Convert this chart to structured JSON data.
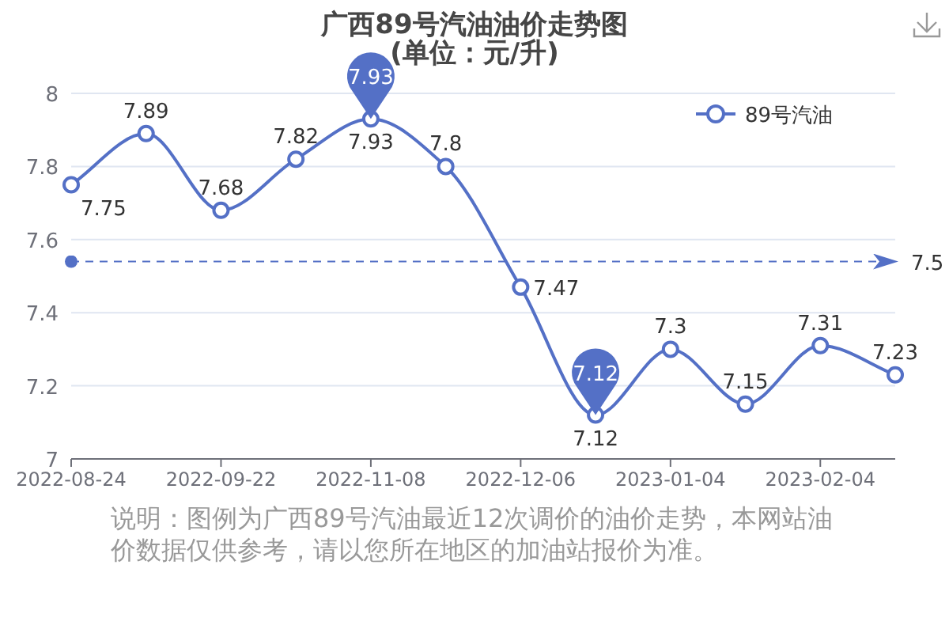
{
  "chart_data": {
    "type": "line",
    "title": "广西89号汽油油价走势图",
    "subtitle": "(单位：元/升)",
    "categories": [
      "2022-08-24",
      null,
      "2022-09-22",
      null,
      "2022-11-08",
      null,
      "2022-12-06",
      null,
      "2023-01-04",
      null,
      "2023-02-04",
      null
    ],
    "series": [
      {
        "name": "89号汽油",
        "color": "#5470c6",
        "values": [
          7.75,
          7.89,
          7.68,
          7.82,
          7.93,
          7.8,
          7.47,
          7.12,
          7.3,
          7.15,
          7.31,
          7.23
        ]
      }
    ],
    "ylim": [
      7,
      8
    ],
    "yticks": [
      7,
      7.2,
      7.4,
      7.6,
      7.8,
      8
    ],
    "grid": "y",
    "legend": "top right",
    "marker": "circle",
    "data_labels": true,
    "ref_lines": [
      {
        "axis": "y",
        "value": 7.54,
        "label": "7.5",
        "color": "#5470c6",
        "line_style": "dashed"
      }
    ],
    "annotations": [
      {
        "text": "7.93",
        "x": "2022-11-08",
        "y": 7.93
      },
      {
        "text": "7.12",
        "y": 7.12
      },
      "说明：图例为广西89号汽油最近12次调价的油价走势，本网站油价数据仅供参考，请以您所在地区的加油站报价为准。"
    ]
  }
}
